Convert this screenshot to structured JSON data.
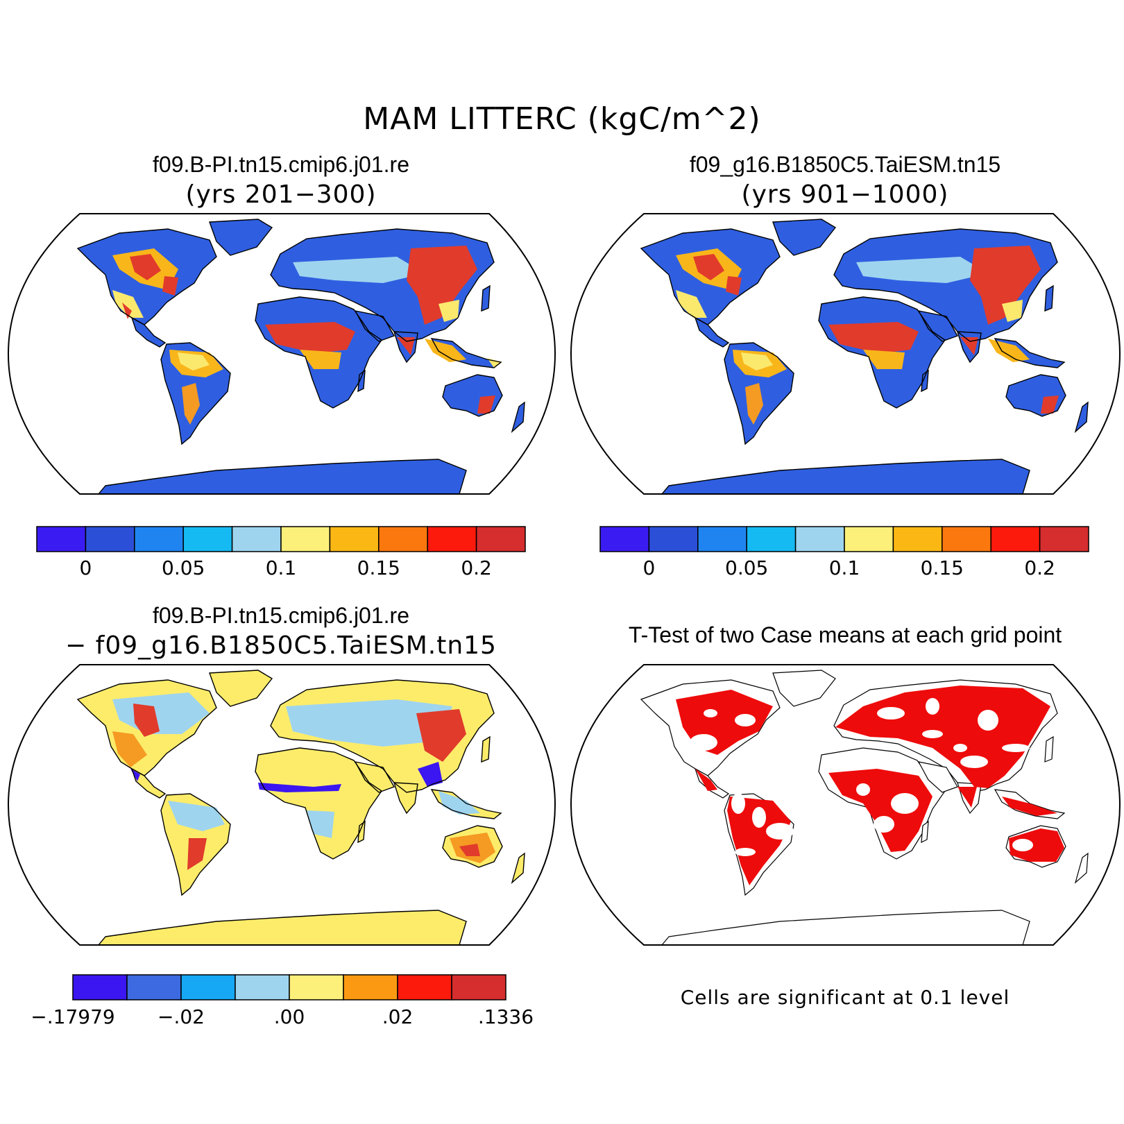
{
  "figure": {
    "main_title": "MAM LITTERC (kgC/m^2)"
  },
  "panels": [
    {
      "id": "case1",
      "title": "f09.B-PI.tn15.cmip6.j01.re",
      "subtitle": "(yrs 201−300)",
      "colorbar": {
        "colors": [
          "#3a1cf2",
          "#2c4fd8",
          "#2084f0",
          "#16baf2",
          "#9fd4ef",
          "#fcf07a",
          "#fbb814",
          "#fb780f",
          "#fb1a0c",
          "#d62d2e"
        ],
        "ticks": [
          "0",
          "0.05",
          "0.1",
          "0.15",
          "0.2"
        ]
      }
    },
    {
      "id": "case2",
      "title": "f09_g16.B1850C5.TaiESM.tn15",
      "subtitle": "(yrs 901−1000)",
      "colorbar": {
        "colors": [
          "#3a1cf2",
          "#2c4fd8",
          "#2084f0",
          "#16baf2",
          "#9fd4ef",
          "#fcf07a",
          "#fbb814",
          "#fb780f",
          "#fb1a0c",
          "#d62d2e"
        ],
        "ticks": [
          "0",
          "0.05",
          "0.1",
          "0.15",
          "0.2"
        ]
      }
    },
    {
      "id": "difference",
      "title": "f09.B-PI.tn15.cmip6.j01.re",
      "subtitle": "− f09_g16.B1850C5.TaiESM.tn15",
      "colorbar": {
        "colors": [
          "#3b16f0",
          "#3d6ae0",
          "#16a8f5",
          "#9fd4ef",
          "#fcf07a",
          "#fb9a12",
          "#fb1a0c",
          "#d62d2e"
        ],
        "ticks": [
          "−.17979",
          "−.02",
          ".00",
          ".02",
          ".1336"
        ]
      }
    },
    {
      "id": "ttest",
      "title": "T-Test of two Case means at each grid point",
      "note": "Cells are significant at 0.1 level",
      "significance_color": "#ee0b0b"
    }
  ]
}
